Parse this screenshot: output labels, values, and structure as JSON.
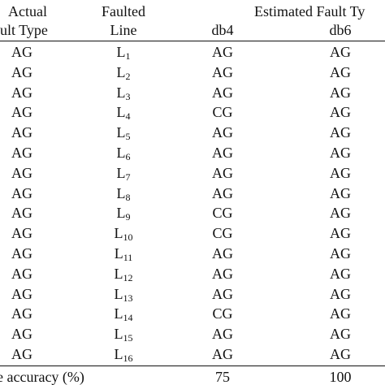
{
  "header": {
    "actual_1": "Actual",
    "actual_2": "ult Type",
    "faulted_1": "Faulted",
    "faulted_2": "Line",
    "estimated": "Estimated Fault Ty",
    "db4": "db4",
    "db6": "db6"
  },
  "rows": [
    {
      "actual": "AG",
      "line_main": "L",
      "line_sub": "1",
      "db4": "AG",
      "db6": "AG"
    },
    {
      "actual": "AG",
      "line_main": "L",
      "line_sub": "2",
      "db4": "AG",
      "db6": "AG"
    },
    {
      "actual": "AG",
      "line_main": "L",
      "line_sub": "3",
      "db4": "AG",
      "db6": "AG"
    },
    {
      "actual": "AG",
      "line_main": "L",
      "line_sub": "4",
      "db4": "CG",
      "db6": "AG"
    },
    {
      "actual": "AG",
      "line_main": "L",
      "line_sub": "5",
      "db4": "AG",
      "db6": "AG"
    },
    {
      "actual": "AG",
      "line_main": "L",
      "line_sub": "6",
      "db4": "AG",
      "db6": "AG"
    },
    {
      "actual": "AG",
      "line_main": "L",
      "line_sub": "7",
      "db4": "AG",
      "db6": "AG"
    },
    {
      "actual": "AG",
      "line_main": "L",
      "line_sub": "8",
      "db4": "AG",
      "db6": "AG"
    },
    {
      "actual": "AG",
      "line_main": "L",
      "line_sub": "9",
      "db4": "CG",
      "db6": "AG"
    },
    {
      "actual": "AG",
      "line_main": "L",
      "line_sub": "10",
      "db4": "CG",
      "db6": "AG"
    },
    {
      "actual": "AG",
      "line_main": "L",
      "line_sub": "11",
      "db4": "AG",
      "db6": "AG"
    },
    {
      "actual": "AG",
      "line_main": "L",
      "line_sub": "12",
      "db4": "AG",
      "db6": "AG"
    },
    {
      "actual": "AG",
      "line_main": "L",
      "line_sub": "13",
      "db4": "AG",
      "db6": "AG"
    },
    {
      "actual": "AG",
      "line_main": "L",
      "line_sub": "14",
      "db4": "CG",
      "db6": "AG"
    },
    {
      "actual": "AG",
      "line_main": "L",
      "line_sub": "15",
      "db4": "AG",
      "db6": "AG"
    },
    {
      "actual": "AG",
      "line_main": "L",
      "line_sub": "16",
      "db4": "AG",
      "db6": "AG"
    }
  ],
  "footer": {
    "label": "e accuracy (%)",
    "db4": "75",
    "db6": "100"
  }
}
